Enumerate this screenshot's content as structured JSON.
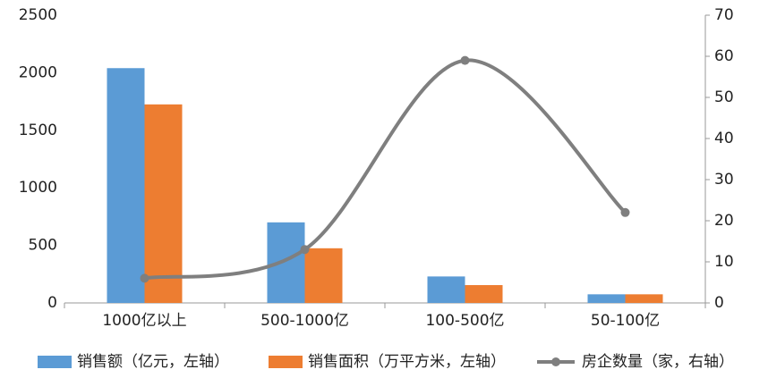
{
  "chart_data": {
    "type": "bar",
    "categories": [
      "1000亿以上",
      "500-1000亿",
      "100-500亿",
      "50-100亿"
    ],
    "series": [
      {
        "name": "销售额（亿元，左轴）",
        "color": "#5b9bd5",
        "values": [
          2040,
          700,
          230,
          75
        ]
      },
      {
        "name": "销售面积（万平方米，左轴）",
        "color": "#ed7d31",
        "values": [
          1725,
          475,
          155,
          75
        ]
      },
      {
        "name": "房企数量（家，右轴）",
        "color": "#7f7f7f",
        "type": "line",
        "axis": "y2",
        "values": [
          6,
          13,
          59,
          22
        ]
      }
    ],
    "ylim": [
      0,
      2500
    ],
    "yticks": [
      0,
      500,
      1000,
      1500,
      2000,
      2500
    ],
    "y2lim": [
      0,
      70
    ],
    "y2ticks": [
      0,
      10,
      20,
      30,
      40,
      50,
      60,
      70
    ],
    "legend": "bottom"
  }
}
